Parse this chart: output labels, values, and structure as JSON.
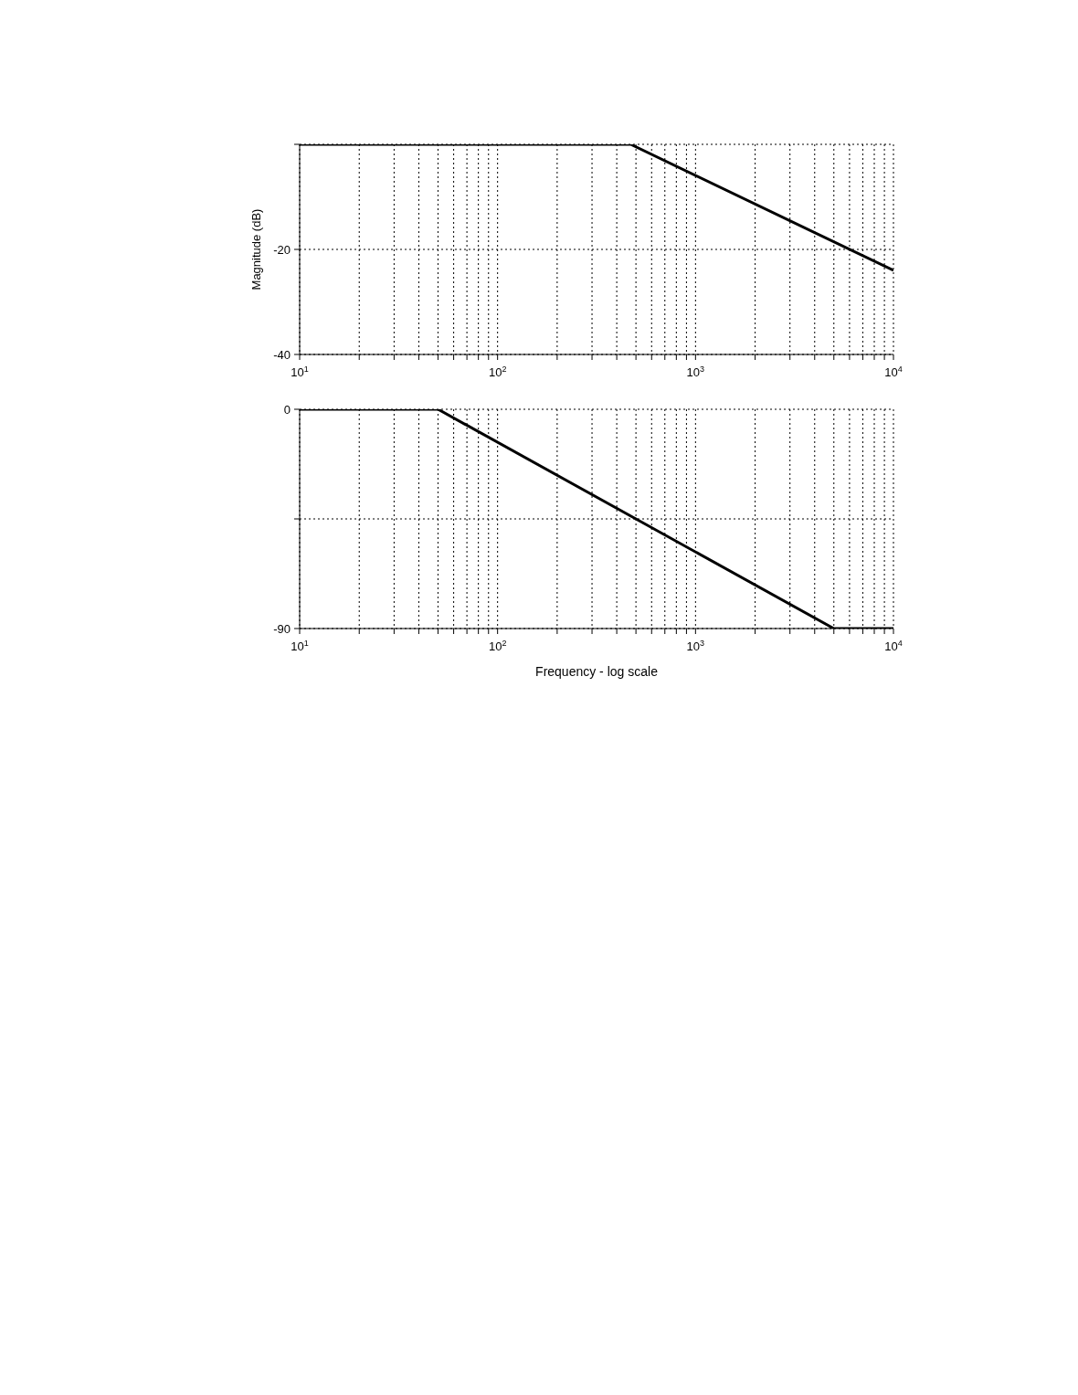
{
  "chart_data": [
    {
      "type": "line",
      "ylabel": "Magnitude (dB)",
      "x": [
        10,
        470,
        10000
      ],
      "series": [
        {
          "color": "#000000",
          "values": [
            0,
            0,
            -24
          ]
        }
      ],
      "xlim": [
        10,
        10000
      ],
      "ylim": [
        -40,
        0
      ],
      "log": "x",
      "grid": true,
      "legend": false,
      "marker": "none",
      "line_style": "solid",
      "xticks": [
        {
          "value": 10,
          "label": "10$^{1}$"
        },
        {
          "value": 20,
          "label": null
        },
        {
          "value": 30,
          "label": null
        },
        {
          "value": 40,
          "label": null
        },
        {
          "value": 50,
          "label": null
        },
        {
          "value": 60,
          "label": null
        },
        {
          "value": 70,
          "label": null
        },
        {
          "value": 80,
          "label": null
        },
        {
          "value": 90,
          "label": null
        },
        {
          "value": 100,
          "label": "10$^{2}$"
        },
        {
          "value": 200,
          "label": null
        },
        {
          "value": 300,
          "label": null
        },
        {
          "value": 400,
          "label": null
        },
        {
          "value": 500,
          "label": null
        },
        {
          "value": 600,
          "label": null
        },
        {
          "value": 700,
          "label": null
        },
        {
          "value": 800,
          "label": null
        },
        {
          "value": 900,
          "label": null
        },
        {
          "value": 1000,
          "label": "10$^{3}$"
        },
        {
          "value": 2000,
          "label": null
        },
        {
          "value": 3000,
          "label": null
        },
        {
          "value": 4000,
          "label": null
        },
        {
          "value": 5000,
          "label": null
        },
        {
          "value": 6000,
          "label": null
        },
        {
          "value": 7000,
          "label": null
        },
        {
          "value": 8000,
          "label": null
        },
        {
          "value": 9000,
          "label": null
        },
        {
          "value": 10000,
          "label": "10$^{4}$"
        }
      ],
      "yticks": [
        -40,
        -20,
        {
          "value": 0,
          "label": null
        }
      ]
    },
    {
      "type": "line",
      "xlabel": "Frequency - log scale",
      "x": [
        10,
        50,
        5000,
        10000
      ],
      "series": [
        {
          "color": "#000000",
          "values": [
            0,
            0,
            -90,
            -90
          ]
        }
      ],
      "xlim": [
        10,
        10000
      ],
      "ylim": [
        -90,
        0
      ],
      "log": "x",
      "grid": true,
      "legend": false,
      "marker": "none",
      "line_style": "solid",
      "xticks": [
        {
          "value": 10,
          "label": "10$^{1}$"
        },
        {
          "value": 20,
          "label": null
        },
        {
          "value": 30,
          "label": null
        },
        {
          "value": 40,
          "label": null
        },
        {
          "value": 50,
          "label": null
        },
        {
          "value": 60,
          "label": null
        },
        {
          "value": 70,
          "label": null
        },
        {
          "value": 80,
          "label": null
        },
        {
          "value": 90,
          "label": null
        },
        {
          "value": 100,
          "label": "10$^{2}$"
        },
        {
          "value": 200,
          "label": null
        },
        {
          "value": 300,
          "label": null
        },
        {
          "value": 400,
          "label": null
        },
        {
          "value": 500,
          "label": null
        },
        {
          "value": 600,
          "label": null
        },
        {
          "value": 700,
          "label": null
        },
        {
          "value": 800,
          "label": null
        },
        {
          "value": 900,
          "label": null
        },
        {
          "value": 1000,
          "label": "10$^{3}$"
        },
        {
          "value": 2000,
          "label": null
        },
        {
          "value": 3000,
          "label": null
        },
        {
          "value": 4000,
          "label": null
        },
        {
          "value": 5000,
          "label": null
        },
        {
          "value": 6000,
          "label": null
        },
        {
          "value": 7000,
          "label": null
        },
        {
          "value": 8000,
          "label": null
        },
        {
          "value": 9000,
          "label": null
        },
        {
          "value": 10000,
          "label": "10$^{4}$"
        }
      ],
      "yticks": [
        -90,
        {
          "value": -45,
          "label": null
        },
        0
      ]
    }
  ]
}
